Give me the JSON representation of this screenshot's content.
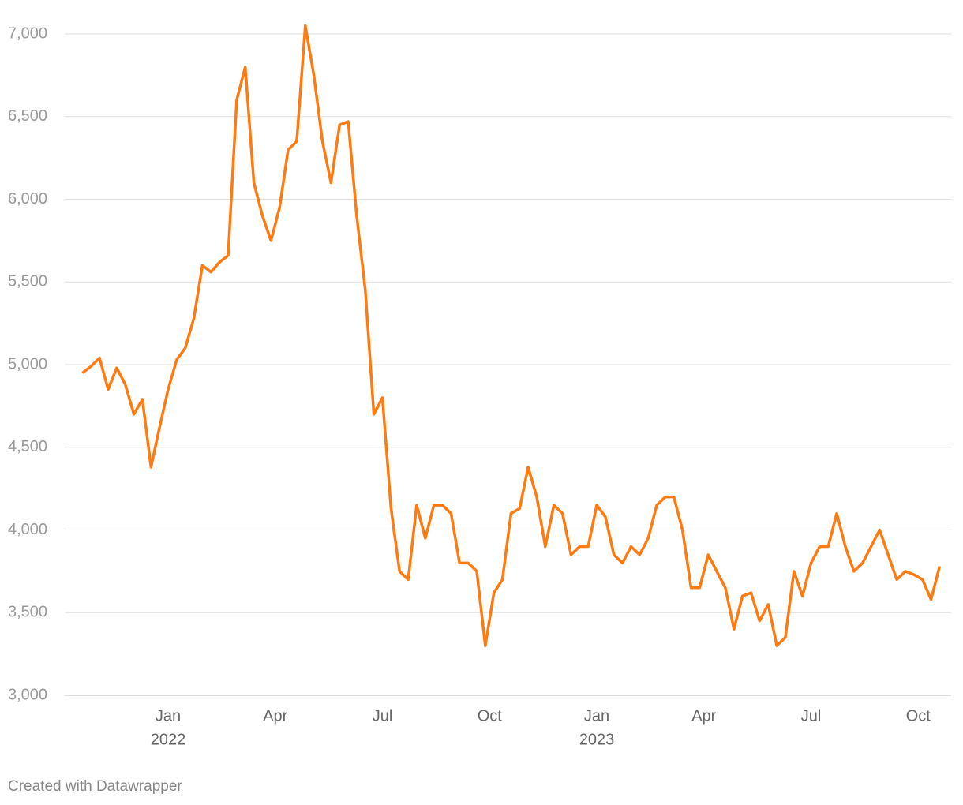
{
  "chart_data": {
    "type": "line",
    "footer": "Created with Datawrapper",
    "color": "#ff7a10",
    "grid": true,
    "x": [
      2021.8,
      2021.82,
      2021.84,
      2021.86,
      2021.88,
      2021.9,
      2021.92,
      2021.94,
      2021.96,
      2021.98,
      2022.0,
      2022.02,
      2022.04,
      2022.06,
      2022.08,
      2022.1,
      2022.12,
      2022.14,
      2022.16,
      2022.18,
      2022.2,
      2022.22,
      2022.24,
      2022.26,
      2022.28,
      2022.3,
      2022.32,
      2022.34,
      2022.36,
      2022.38,
      2022.4,
      2022.42,
      2022.44,
      2022.46,
      2022.48,
      2022.5,
      2022.52,
      2022.54,
      2022.56,
      2022.58,
      2022.6,
      2022.62,
      2022.64,
      2022.66,
      2022.68,
      2022.7,
      2022.72,
      2022.74,
      2022.76,
      2022.78,
      2022.8,
      2022.82,
      2022.84,
      2022.86,
      2022.88,
      2022.9,
      2022.92,
      2022.94,
      2022.96,
      2022.98,
      2023.0,
      2023.02,
      2023.04,
      2023.06,
      2023.08,
      2023.1,
      2023.12,
      2023.14,
      2023.16,
      2023.18,
      2023.2,
      2023.22,
      2023.24,
      2023.26,
      2023.28,
      2023.3,
      2023.32,
      2023.34,
      2023.36,
      2023.38,
      2023.4,
      2023.42,
      2023.44,
      2023.46,
      2023.48,
      2023.5,
      2023.52,
      2023.54,
      2023.56,
      2023.58,
      2023.6,
      2023.62,
      2023.64,
      2023.66,
      2023.68,
      2023.7,
      2023.72,
      2023.74,
      2023.76,
      2023.78,
      2023.8
    ],
    "values": [
      4950,
      4990,
      5040,
      4850,
      4980,
      4880,
      4700,
      4790,
      4380,
      4620,
      4850,
      5030,
      5100,
      5280,
      5600,
      5560,
      5620,
      5660,
      6600,
      6800,
      6100,
      5900,
      5750,
      5950,
      6300,
      6350,
      7050,
      6750,
      6350,
      6100,
      6450,
      6470,
      5900,
      5450,
      4700,
      4800,
      4130,
      3750,
      3700,
      4150,
      3950,
      4150,
      4150,
      4100,
      3800,
      3800,
      3750,
      3300,
      3620,
      3700,
      4100,
      4130,
      4380,
      4200,
      3900,
      4150,
      4100,
      3850,
      3900,
      3900,
      4150,
      4080,
      3850,
      3800,
      3900,
      3850,
      3950,
      4150,
      4200,
      4200,
      4000,
      3650,
      3650,
      3850,
      3750,
      3650,
      3400,
      3600,
      3620,
      3450,
      3550,
      3300,
      3350,
      3750,
      3600,
      3800,
      3900,
      3900,
      4100,
      3900,
      3750,
      3800,
      3900,
      4000,
      3850,
      3700,
      3750,
      3730,
      3700,
      3580,
      3780
    ],
    "xlim": [
      2021.8,
      2023.8
    ],
    "xticks": [
      {
        "value": 2022.0,
        "label": "Jan"
      },
      {
        "value": 2022.25,
        "label": "Apr"
      },
      {
        "value": 2022.5,
        "label": "Jul"
      },
      {
        "value": 2022.75,
        "label": "Oct"
      },
      {
        "value": 2023.0,
        "label": "Jan"
      },
      {
        "value": 2023.25,
        "label": "Apr"
      },
      {
        "value": 2023.5,
        "label": "Jul"
      },
      {
        "value": 2023.75,
        "label": "Oct"
      }
    ],
    "x_year_labels": [
      {
        "value": 2022.0,
        "label": "2022"
      },
      {
        "value": 2023.0,
        "label": "2023"
      }
    ],
    "ylim": [
      3000,
      7000
    ],
    "yticks": [
      {
        "value": 3000,
        "label": "3,000"
      },
      {
        "value": 3500,
        "label": "3,500"
      },
      {
        "value": 4000,
        "label": "4,000"
      },
      {
        "value": 4500,
        "label": "4,500"
      },
      {
        "value": 5000,
        "label": "5,000"
      },
      {
        "value": 5500,
        "label": "5,500"
      },
      {
        "value": 6000,
        "label": "6,000"
      },
      {
        "value": 6500,
        "label": "6,500"
      },
      {
        "value": 7000,
        "label": "7,000"
      }
    ]
  }
}
